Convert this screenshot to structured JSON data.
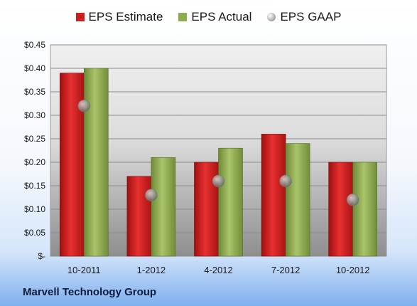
{
  "chart_data": {
    "type": "bar",
    "categories": [
      "10-2011",
      "1-2012",
      "4-2012",
      "7-2012",
      "10-2012"
    ],
    "series": [
      {
        "name": "EPS Estimate",
        "kind": "bar",
        "color": "#cc1f1f",
        "values": [
          0.39,
          0.17,
          0.2,
          0.26,
          0.2
        ]
      },
      {
        "name": "EPS Actual",
        "kind": "bar",
        "color": "#8fac4f",
        "values": [
          0.4,
          0.21,
          0.23,
          0.24,
          0.2
        ]
      },
      {
        "name": "EPS GAAP",
        "kind": "marker",
        "color": "#a0a0a0",
        "values": [
          0.32,
          0.13,
          0.16,
          0.16,
          0.12
        ]
      }
    ],
    "yticks": [
      0.45,
      0.4,
      0.35,
      0.3,
      0.25,
      0.2,
      0.15,
      0.1,
      0.05,
      0
    ],
    "ytick_labels": [
      "$0.45",
      "$0.40",
      "$0.35",
      "$0.30",
      "$0.25",
      "$0.20",
      "$0.15",
      "$0.10",
      "$0.05",
      "$-"
    ],
    "ylim": [
      0,
      0.45
    ],
    "grid": true,
    "legend_position": "top"
  },
  "footer": {
    "company": "Marvell Technology Group"
  }
}
